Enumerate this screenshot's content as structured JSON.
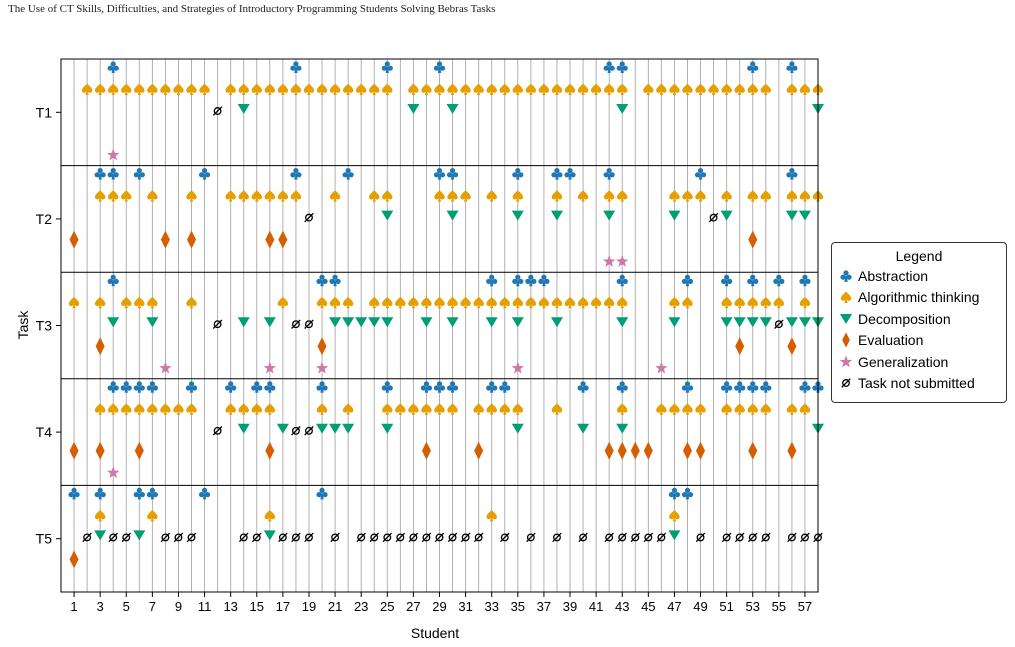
{
  "header": {
    "running_head": "The Use of CT Skills, Difficulties, and Strategies of Introductory Programming Students Solving Bebras Tasks"
  },
  "colors": {
    "abstraction": "#1f77b4",
    "algorithmic": "#e69f00",
    "decomposition": "#009e73",
    "evaluation": "#d55e00",
    "generalization": "#cc79a7",
    "not_submitted": "#000000"
  },
  "chart_data": {
    "type": "scatter",
    "xlabel": "Student",
    "ylabel": "Task",
    "xlim": [
      0,
      58
    ],
    "x_ticks": [
      1,
      3,
      5,
      7,
      9,
      11,
      13,
      15,
      17,
      19,
      21,
      23,
      25,
      27,
      29,
      31,
      33,
      35,
      37,
      39,
      41,
      43,
      45,
      47,
      49,
      51,
      53,
      55,
      57
    ],
    "tasks": [
      "T1",
      "T2",
      "T3",
      "T4",
      "T5"
    ],
    "legend": {
      "title": "Legend",
      "items": [
        {
          "key": "abstraction",
          "label": "Abstraction",
          "marker": "club"
        },
        {
          "key": "algorithmic",
          "label": "Algorithmic thinking",
          "marker": "spade"
        },
        {
          "key": "decomposition",
          "label": "Decomposition",
          "marker": "triangle-down"
        },
        {
          "key": "evaluation",
          "label": "Evaluation",
          "marker": "diamond"
        },
        {
          "key": "generalization",
          "label": "Generalization",
          "marker": "star"
        },
        {
          "key": "not_submitted",
          "label": "Task not submitted",
          "marker": "empty-set"
        }
      ]
    },
    "series": {
      "T1": {
        "abstraction": [
          4,
          18,
          25,
          29,
          42,
          43,
          53,
          56
        ],
        "algorithmic": [
          2,
          3,
          4,
          5,
          6,
          7,
          8,
          9,
          10,
          11,
          13,
          14,
          15,
          16,
          17,
          18,
          19,
          20,
          21,
          22,
          23,
          24,
          25,
          27,
          28,
          29,
          30,
          31,
          32,
          33,
          34,
          35,
          36,
          37,
          38,
          39,
          40,
          41,
          42,
          43,
          45,
          46,
          47,
          48,
          49,
          50,
          51,
          52,
          53,
          54,
          56,
          57,
          58
        ],
        "decomposition": [
          14,
          27,
          30,
          43,
          58
        ],
        "evaluation": [],
        "generalization": [
          4
        ],
        "not_submitted": [
          12
        ]
      },
      "T2": {
        "abstraction": [
          3,
          4,
          6,
          11,
          18,
          22,
          29,
          30,
          35,
          38,
          39,
          42,
          49,
          56
        ],
        "algorithmic": [
          3,
          4,
          5,
          7,
          10,
          13,
          14,
          15,
          16,
          17,
          18,
          21,
          24,
          25,
          29,
          30,
          31,
          33,
          35,
          38,
          40,
          42,
          43,
          47,
          48,
          49,
          51,
          53,
          54,
          56,
          57,
          58
        ],
        "decomposition": [
          25,
          30,
          35,
          38,
          42,
          47,
          51,
          56,
          57
        ],
        "evaluation": [
          1,
          8,
          10,
          16,
          17,
          53
        ],
        "generalization": [
          42,
          43
        ],
        "not_submitted": [
          19,
          50
        ]
      },
      "T3": {
        "abstraction": [
          4,
          20,
          21,
          33,
          35,
          36,
          37,
          43,
          48,
          51,
          53,
          55,
          57
        ],
        "algorithmic": [
          1,
          3,
          5,
          6,
          7,
          10,
          17,
          20,
          21,
          22,
          24,
          25,
          26,
          27,
          28,
          29,
          30,
          31,
          32,
          33,
          34,
          35,
          36,
          37,
          38,
          39,
          40,
          41,
          42,
          43,
          47,
          48,
          51,
          52,
          53,
          54,
          55,
          57
        ],
        "decomposition": [
          4,
          7,
          14,
          16,
          21,
          22,
          23,
          24,
          25,
          28,
          30,
          33,
          35,
          38,
          43,
          47,
          51,
          52,
          53,
          54,
          56,
          57,
          58
        ],
        "evaluation": [
          3,
          20,
          52,
          56
        ],
        "generalization": [
          8,
          16,
          20,
          35,
          46
        ],
        "not_submitted": [
          12,
          18,
          19,
          55
        ]
      },
      "T4": {
        "abstraction": [
          4,
          5,
          6,
          7,
          10,
          13,
          15,
          16,
          20,
          25,
          28,
          29,
          30,
          33,
          34,
          40,
          43,
          48,
          51,
          52,
          53,
          54,
          57,
          58
        ],
        "algorithmic": [
          3,
          4,
          5,
          6,
          7,
          8,
          9,
          10,
          13,
          14,
          15,
          16,
          20,
          22,
          25,
          26,
          27,
          28,
          29,
          30,
          32,
          33,
          34,
          35,
          38,
          43,
          46,
          47,
          48,
          49,
          51,
          52,
          53,
          54,
          56,
          57
        ],
        "decomposition": [
          14,
          17,
          20,
          21,
          22,
          25,
          35,
          40,
          43,
          58
        ],
        "evaluation": [
          1,
          3,
          6,
          16,
          28,
          32,
          42,
          43,
          44,
          45,
          48,
          49,
          53,
          56
        ],
        "generalization": [
          4
        ],
        "not_submitted": [
          12,
          18,
          19
        ]
      },
      "T5": {
        "abstraction": [
          1,
          3,
          6,
          7,
          11,
          20,
          47,
          48
        ],
        "algorithmic": [
          3,
          7,
          16,
          33,
          47
        ],
        "decomposition": [
          3,
          6,
          16,
          47
        ],
        "evaluation": [
          1
        ],
        "generalization": [],
        "not_submitted": [
          2,
          4,
          5,
          8,
          9,
          10,
          14,
          15,
          17,
          18,
          19,
          21,
          23,
          24,
          25,
          26,
          27,
          28,
          29,
          30,
          31,
          32,
          34,
          36,
          38,
          40,
          42,
          43,
          44,
          45,
          46,
          49,
          51,
          52,
          53,
          54,
          56,
          57,
          58
        ]
      }
    }
  }
}
